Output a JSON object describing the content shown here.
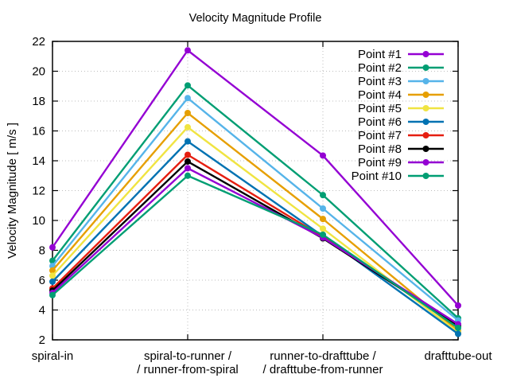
{
  "chart_data": {
    "type": "line",
    "title": "Velocity Magnitude Profile",
    "ylabel": "Velocity Magnitude [ m/s ]",
    "ylim": [
      2,
      22
    ],
    "ytick_step": 2,
    "yticks": [
      2,
      4,
      6,
      8,
      10,
      12,
      14,
      16,
      18,
      20,
      22
    ],
    "grid": true,
    "grid_style": "dotted",
    "legend_position": "top-right-inside",
    "background": "#ffffff",
    "grid_color": "#bdbdbd",
    "axis_color": "#000000",
    "categories": [
      [
        "spiral-in"
      ],
      [
        "spiral-to-runner /",
        "/ runner-from-spiral"
      ],
      [
        "runner-to-drafttube /",
        "/ drafttube-from-runner"
      ],
      [
        "drafttube-out"
      ]
    ],
    "series": [
      {
        "name": "Point #1",
        "color": "#9400d3",
        "values": [
          8.2,
          21.4,
          14.35,
          4.3
        ]
      },
      {
        "name": "Point #2",
        "color": "#009e73",
        "values": [
          7.3,
          19.05,
          11.7,
          3.45
        ]
      },
      {
        "name": "Point #3",
        "color": "#56b4e9",
        "values": [
          6.95,
          18.2,
          10.8,
          3.3
        ]
      },
      {
        "name": "Point #4",
        "color": "#e69f00",
        "values": [
          6.65,
          17.2,
          10.1,
          2.6
        ]
      },
      {
        "name": "Point #5",
        "color": "#f0e442",
        "values": [
          6.3,
          16.25,
          9.45,
          2.5
        ]
      },
      {
        "name": "Point #6",
        "color": "#0072b2",
        "values": [
          5.9,
          15.3,
          8.95,
          2.4
        ]
      },
      {
        "name": "Point #7",
        "color": "#e51e10",
        "values": [
          5.45,
          14.4,
          8.9,
          3.0
        ]
      },
      {
        "name": "Point #8",
        "color": "#000000",
        "values": [
          5.3,
          13.95,
          8.8,
          2.95
        ]
      },
      {
        "name": "Point #9",
        "color": "#9400d3",
        "values": [
          5.15,
          13.5,
          8.85,
          3.05
        ]
      },
      {
        "name": "Point #10",
        "color": "#009e73",
        "values": [
          5.0,
          13.0,
          9.05,
          2.8
        ]
      }
    ]
  }
}
